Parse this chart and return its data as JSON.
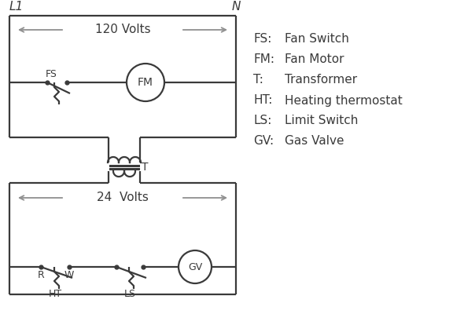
{
  "background_color": "#ffffff",
  "line_color": "#3a3a3a",
  "gray_color": "#909090",
  "legend": [
    [
      "FS:",
      "Fan Switch"
    ],
    [
      "FM:",
      "Fan Motor"
    ],
    [
      "T:",
      "Transformer"
    ],
    [
      "HT:",
      "Heating thermostat"
    ],
    [
      "LS:",
      "Limit Switch"
    ],
    [
      "GV:",
      "Gas Valve"
    ]
  ],
  "volts_120": "120 Volts",
  "volts_24": "24  Volts",
  "L1": "L1",
  "N": "N",
  "figsize": [
    5.9,
    4.0
  ],
  "dpi": 100
}
